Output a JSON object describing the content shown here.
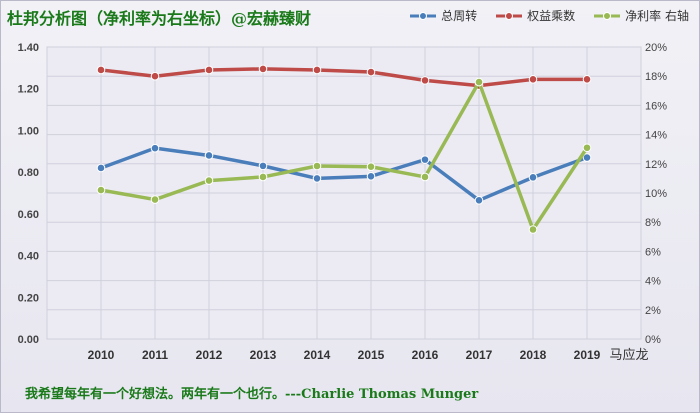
{
  "title": "杜邦分析图（净利率为右坐标）@宏赫臻财",
  "footer_text": "我希望每年有一个好想法。两年有一个也行。---Charlie Thomas  Munger",
  "extra_label": "马应龙",
  "chart_data": {
    "type": "line",
    "categories": [
      "2010",
      "2011",
      "2012",
      "2013",
      "2014",
      "2015",
      "2016",
      "2017",
      "2018",
      "2019"
    ],
    "y_left": {
      "ticks": [
        "0.00",
        "0.20",
        "0.40",
        "0.60",
        "0.80",
        "1.00",
        "1.20",
        "1.40"
      ],
      "lim": [
        0,
        1.4
      ]
    },
    "y_right": {
      "ticks": [
        "0%",
        "2%",
        "4%",
        "6%",
        "8%",
        "10%",
        "12%",
        "14%",
        "16%",
        "18%",
        "20%"
      ],
      "lim": [
        0,
        20
      ]
    },
    "grid": true,
    "legend_position": "top-right",
    "series": [
      {
        "name": "总周转",
        "axis": "left",
        "color": "#4a7ebb",
        "values": [
          0.82,
          0.915,
          0.88,
          0.83,
          0.77,
          0.78,
          0.86,
          0.665,
          0.775,
          0.87
        ]
      },
      {
        "name": "权益乘数",
        "axis": "left",
        "color": "#be4b48",
        "values": [
          1.29,
          1.26,
          1.29,
          1.295,
          1.29,
          1.28,
          1.24,
          1.215,
          1.245,
          1.245
        ]
      },
      {
        "name": "净利率 右轴",
        "axis": "right",
        "color": "#98b954",
        "values": [
          10.2,
          9.55,
          10.85,
          11.1,
          11.85,
          11.8,
          11.1,
          17.6,
          7.5,
          13.1
        ]
      }
    ]
  }
}
